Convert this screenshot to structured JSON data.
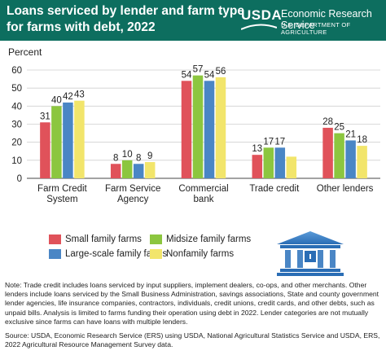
{
  "header": {
    "title_line1": "Loans serviced by lender and farm type",
    "title_line2": "for farms with debt, 2022",
    "logo_text": "USDA",
    "agency": "Economic Research Service",
    "department": "U.S. DEPARTMENT OF AGRICULTURE"
  },
  "chart_data": {
    "type": "bar",
    "ylabel": "Percent",
    "ylim": [
      0,
      60
    ],
    "yticks": [
      0,
      10,
      20,
      30,
      40,
      50,
      60
    ],
    "grid": true,
    "legend_position": "bottom",
    "categories": [
      [
        "Farm Credit",
        "System"
      ],
      [
        "Farm Service",
        "Agency"
      ],
      [
        "Commercial",
        "bank"
      ],
      [
        "Trade credit"
      ],
      [
        "Other lenders"
      ]
    ],
    "series": [
      {
        "name": "Small family farms",
        "color": "#e0525a",
        "values": [
          31,
          8,
          54,
          13,
          28
        ]
      },
      {
        "name": "Midsize family farms",
        "color": "#8cc63f",
        "values": [
          40,
          10,
          57,
          17,
          25
        ]
      },
      {
        "name": "Large-scale family farms",
        "color": "#4a86c5",
        "values": [
          42,
          8,
          54,
          17,
          21
        ]
      },
      {
        "name": "Nonfamily farms",
        "color": "#f2e56b",
        "values": [
          43,
          9,
          56,
          12,
          18
        ]
      }
    ],
    "data_labels": [
      [
        "31",
        "40",
        "42",
        "43"
      ],
      [
        "8",
        "10",
        "8",
        "9"
      ],
      [
        "54",
        "57",
        "54",
        "56"
      ],
      [
        "13",
        "17",
        "17",
        ""
      ],
      [
        "28",
        "25",
        "21",
        "18"
      ]
    ]
  },
  "icon": "bank-building-icon",
  "note": "Note: Trade credit includes loans serviced by input suppliers, implement dealers, co-ops, and other merchants. Other lenders include loans serviced by the Small Business Administration, savings associations, State and county government lender agencies, life insurance companies, contractors, individuals, credit unions, credit cards, and other debts, such as unpaid bills. Analysis is limited to farms funding their operation using debt in 2022. Lender categories are not mutually exclusive since farms can have loans with multiple lenders.",
  "source": "Source: USDA, Economic Research Service (ERS) using USDA, National Agricultural Statistics Service and USDA, ERS, 2022 Agricultural Resource Management Survey data."
}
